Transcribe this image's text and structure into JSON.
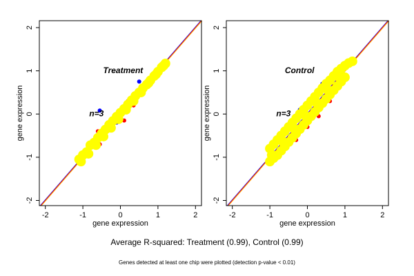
{
  "chart_data": [
    {
      "type": "scatter",
      "xlabel": "gene expression",
      "ylabel": "gene expression",
      "xlim": [
        -2.16,
        2.16
      ],
      "ylim": [
        -2.12,
        2.16
      ],
      "xticks": [
        -2,
        -1,
        0,
        1,
        2
      ],
      "yticks": [
        -2,
        -1,
        0,
        1,
        2
      ],
      "diagonal_colors": [
        "#0000ff",
        "#ff0000",
        "#ffa500"
      ],
      "annotations": [
        {
          "text": "Treatment",
          "x": -0.46,
          "y": 1.0,
          "color": "#555555"
        },
        {
          "text": "n=3",
          "x": -0.83,
          "y": 0.0,
          "color": "#000000"
        }
      ],
      "series": [
        {
          "color": "#ff0000",
          "x": [
            -1.0,
            -0.55,
            -0.4,
            0.1,
            0.2,
            0.35,
            0.5,
            -0.6,
            -0.2
          ],
          "y": [
            -1.05,
            -0.7,
            -0.5,
            -0.15,
            0.3,
            0.2,
            0.5,
            -0.4,
            -0.35
          ]
        },
        {
          "color": "#0000ff",
          "x": [
            0.5,
            -0.55,
            -0.1,
            -0.5,
            -1.1
          ],
          "y": [
            0.75,
            0.08,
            -0.2,
            -0.55,
            -1.1
          ]
        },
        {
          "color": "#ffff00",
          "x": [
            -1.1,
            -1.0,
            -0.9,
            -0.8,
            -0.7,
            -0.6,
            -0.5,
            -0.4,
            -0.3,
            -0.2,
            -0.1,
            0,
            0.1,
            0.2,
            0.3,
            0.4,
            0.5,
            0.6,
            0.7,
            0.8,
            0.9,
            1.0,
            1.1,
            1.2,
            -1.05,
            -0.85,
            -0.65,
            -0.45,
            -0.25,
            -0.05,
            0.15,
            0.35,
            0.55,
            0.75,
            0.95,
            1.15
          ],
          "y": [
            -1.05,
            -0.95,
            -0.88,
            -0.72,
            -0.66,
            -0.55,
            -0.45,
            -0.36,
            -0.25,
            -0.16,
            -0.06,
            0.03,
            0.12,
            0.22,
            0.32,
            0.42,
            0.5,
            0.6,
            0.68,
            0.78,
            0.88,
            0.98,
            1.08,
            1.17,
            -1.1,
            -0.92,
            -0.72,
            -0.52,
            -0.32,
            -0.12,
            0.1,
            0.3,
            0.5,
            0.72,
            0.92,
            1.12
          ]
        }
      ]
    },
    {
      "type": "scatter",
      "xlabel": "gene expression",
      "ylabel": "gene expression",
      "xlim": [
        -2.16,
        2.16
      ],
      "ylim": [
        -2.12,
        2.16
      ],
      "xticks": [
        -2,
        -1,
        0,
        1,
        2
      ],
      "yticks": [
        -2,
        -1,
        0,
        1,
        2
      ],
      "diagonal_colors": [
        "#0000ff",
        "#ff0000",
        "#ffa500"
      ],
      "annotations": [
        {
          "text": "Control",
          "x": -0.6,
          "y": 1.0,
          "color": "#555555"
        },
        {
          "text": "n=3",
          "x": -0.83,
          "y": 0.0,
          "color": "#000000"
        }
      ],
      "series": [
        {
          "color": "#ff0000",
          "x": [
            -1.0,
            -0.8,
            -0.6,
            -0.3,
            0.0,
            0.3,
            0.6,
            -0.95,
            -0.5,
            0.2,
            0.5,
            0.8
          ],
          "y": [
            -1.15,
            -1.0,
            -0.8,
            -0.6,
            -0.3,
            -0.05,
            0.3,
            -0.7,
            -0.25,
            0.45,
            0.75,
            0.9
          ]
        },
        {
          "color": "#0000ff",
          "x": [
            -1.05,
            -0.7,
            0.4,
            0.7,
            -0.2
          ],
          "y": [
            -1.12,
            -0.9,
            0.7,
            0.95,
            0.1
          ]
        },
        {
          "color": "#ffff00",
          "x": [
            -1.0,
            -0.9,
            -0.8,
            -0.7,
            -0.6,
            -0.5,
            -0.4,
            -0.3,
            -0.2,
            -0.1,
            0,
            0.1,
            0.2,
            0.3,
            0.4,
            0.5,
            0.6,
            0.7,
            0.8,
            0.9,
            1.0,
            1.1,
            1.2,
            -1.0,
            -0.9,
            -0.8,
            -0.7,
            -0.6,
            -0.5,
            -0.4,
            -0.3,
            -0.2,
            -0.1,
            0,
            0.1,
            0.2,
            0.3,
            0.4,
            0.5,
            0.6,
            0.7,
            0.8,
            0.9,
            1.0,
            -0.95,
            -0.65,
            -0.35,
            -0.05,
            0.25,
            0.55,
            0.85
          ],
          "y": [
            -0.8,
            -0.7,
            -0.6,
            -0.5,
            -0.4,
            -0.3,
            -0.2,
            -0.1,
            0.0,
            0.1,
            0.2,
            0.3,
            0.4,
            0.5,
            0.6,
            0.7,
            0.78,
            0.88,
            0.98,
            1.05,
            1.12,
            1.18,
            1.22,
            -1.1,
            -1.02,
            -0.95,
            -0.85,
            -0.75,
            -0.65,
            -0.55,
            -0.45,
            -0.35,
            -0.25,
            -0.15,
            -0.05,
            0.05,
            0.15,
            0.25,
            0.35,
            0.45,
            0.55,
            0.65,
            0.75,
            0.85,
            -0.95,
            -0.65,
            -0.35,
            -0.05,
            0.25,
            0.55,
            0.85
          ]
        }
      ]
    }
  ],
  "caption": "Average R-squared: Treatment (0.99), Control (0.99)",
  "note": "Genes detected at least one chip were plotted (detection p-value < 0.01)"
}
